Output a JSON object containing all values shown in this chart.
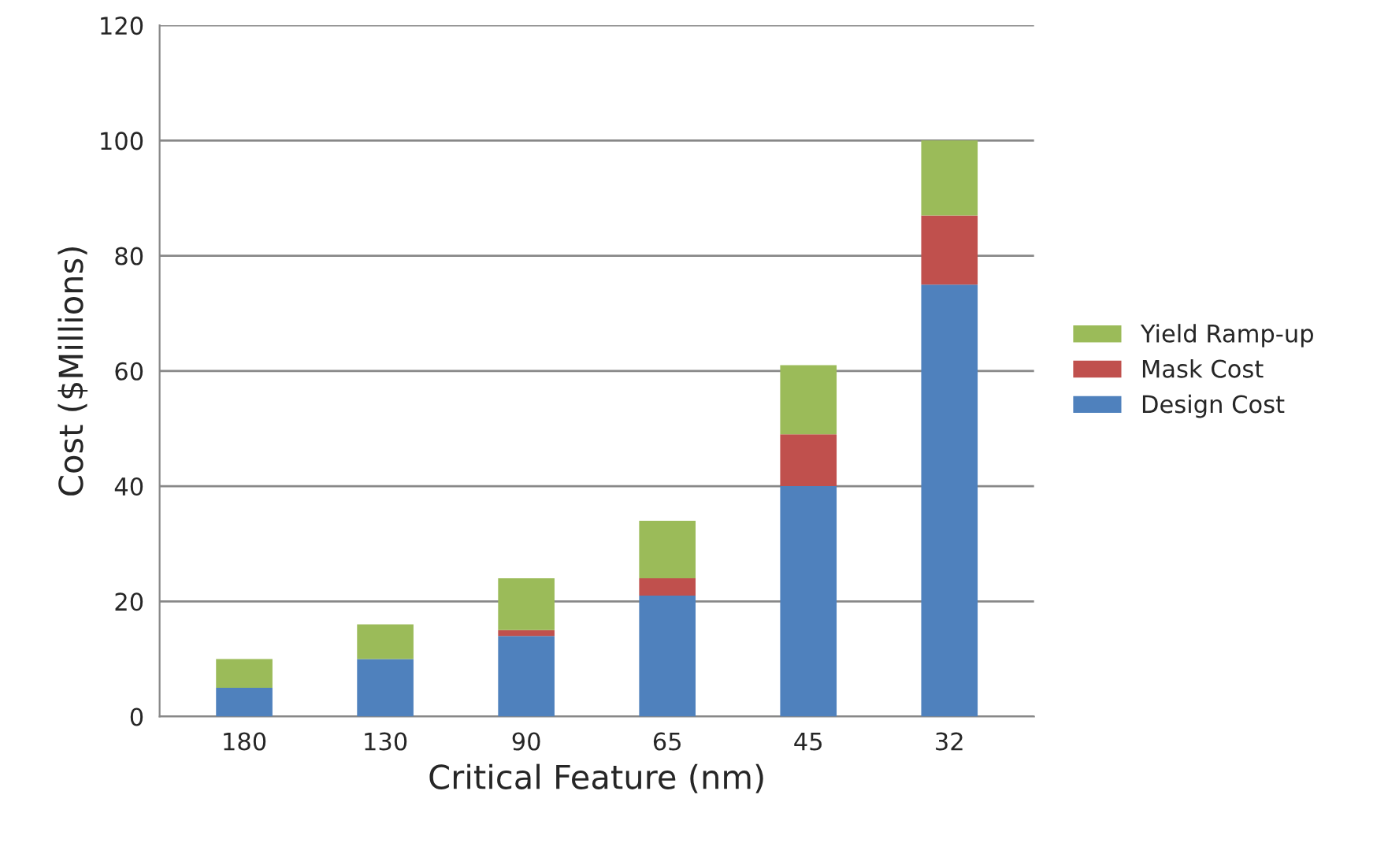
{
  "chart_data": {
    "type": "bar",
    "stacked": true,
    "xlabel": "Critical Feature (nm)",
    "ylabel": "Cost ($Millions)",
    "categories": [
      "180",
      "130",
      "90",
      "65",
      "45",
      "32"
    ],
    "series": [
      {
        "name": "Design Cost",
        "color": "#4f81bd",
        "values": [
          5,
          10,
          14,
          21,
          40,
          75
        ]
      },
      {
        "name": "Mask Cost",
        "color": "#c0504d",
        "values": [
          0,
          0,
          1,
          3,
          9,
          12
        ]
      },
      {
        "name": "Yield Ramp-up",
        "color": "#9bbb59",
        "values": [
          5,
          6,
          9,
          10,
          12,
          13
        ]
      }
    ],
    "ylim": [
      0,
      120
    ],
    "yticks": [
      0,
      20,
      40,
      60,
      80,
      100,
      120
    ],
    "grid": "y",
    "legend": "right"
  }
}
